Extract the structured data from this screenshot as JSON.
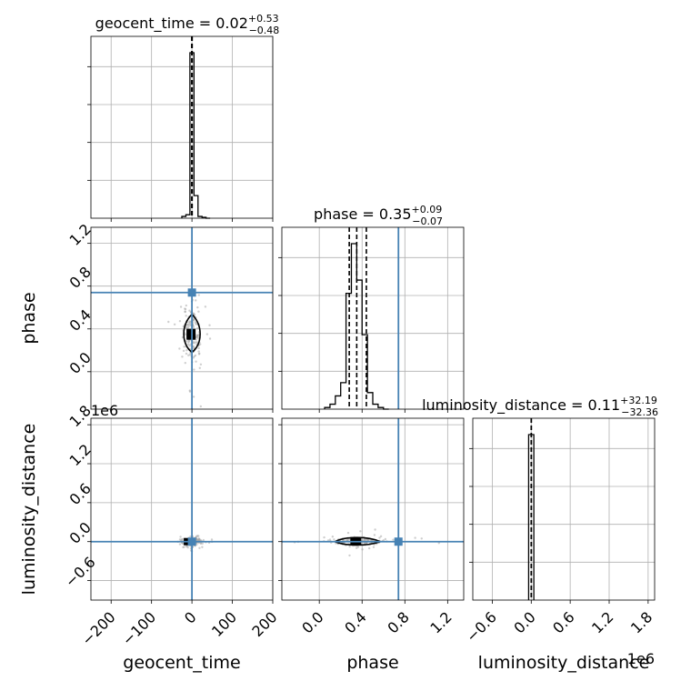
{
  "chart_data": {
    "type": "corner",
    "colors": {
      "truth": "#4682b4",
      "hist": "#000000",
      "samples": "#a0a0a0",
      "grid": "#b0b0b0"
    },
    "parameters": [
      {
        "name": "geocent_time",
        "title_prefix": "geocent_time = ",
        "median": "0.02",
        "upper": "+0.53",
        "lower": "−0.48",
        "range": [
          -250,
          200
        ],
        "ticks": [
          -200,
          -100,
          0,
          100,
          200
        ],
        "tick_labels": [
          "−200",
          "−100",
          "0",
          "100",
          "200"
        ],
        "truth": 0,
        "quantiles": [
          -0.46,
          0.02,
          0.55
        ],
        "hist": {
          "edges": [
            -25,
            -15,
            -5,
            5,
            15,
            25,
            35,
            45
          ],
          "counts": [
            0.01,
            0.02,
            0.95,
            0.13,
            0.01,
            0.005,
            0
          ]
        }
      },
      {
        "name": "phase",
        "title_prefix": "phase = ",
        "median": "0.35",
        "upper": "+0.09",
        "lower": "−0.07",
        "range": [
          -0.35,
          1.35
        ],
        "ticks": [
          0.0,
          0.4,
          0.8,
          1.2
        ],
        "tick_labels": [
          "0.0",
          "0.4",
          "0.8",
          "1.2"
        ],
        "truth": 0.74,
        "quantiles": [
          0.28,
          0.35,
          0.44
        ],
        "hist": {
          "edges": [
            0.05,
            0.1,
            0.15,
            0.2,
            0.25,
            0.3,
            0.35,
            0.4,
            0.45,
            0.5,
            0.55,
            0.6,
            0.65
          ],
          "counts": [
            0.01,
            0.03,
            0.08,
            0.16,
            0.7,
            1.0,
            0.78,
            0.45,
            0.1,
            0.03,
            0.01,
            0
          ]
        }
      },
      {
        "name": "luminosity_distance",
        "title_prefix": "luminosity_distance = ",
        "median": "0.11",
        "upper": "+32.19",
        "lower": "−32.36",
        "range": [
          -900000,
          1900000
        ],
        "ticks": [
          -600000,
          0,
          600000,
          1200000,
          1800000
        ],
        "tick_labels": [
          "−0.6",
          "0.0",
          "0.6",
          "1.2",
          "1.8"
        ],
        "multiplier": "1e6",
        "truth": 0,
        "quantiles": [
          -32.25,
          0.11,
          32.3
        ],
        "hist": {
          "edges": [
            -40000,
            0,
            40000
          ],
          "counts": [
            1.0,
            1.0
          ]
        }
      }
    ]
  }
}
